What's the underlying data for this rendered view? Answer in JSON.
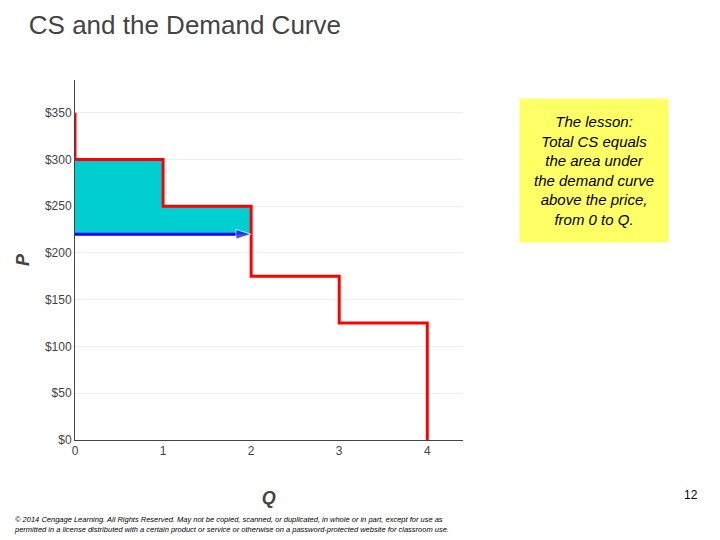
{
  "chart_data": {
    "type": "line",
    "title": "CS and the Demand Curve",
    "x_label": "Q",
    "y_label": "P",
    "series": [
      {
        "type": "area",
        "color": "#00CED1",
        "x": [
          0,
          1,
          1,
          2,
          2,
          0
        ],
        "values": [
          300,
          300,
          250,
          250,
          220,
          220
        ]
      },
      {
        "type": "line",
        "color": "#FF0000",
        "x": [
          0,
          0,
          1,
          1,
          2,
          2,
          3,
          3,
          4,
          4
        ],
        "values": [
          350,
          300,
          300,
          250,
          250,
          175,
          175,
          125,
          125,
          0
        ]
      },
      {
        "type": "line",
        "color": "#0000FF",
        "x": [
          0,
          2
        ],
        "values": [
          220,
          220
        ],
        "marker": "arrow"
      }
    ],
    "xlim": [
      0,
      4.4
    ],
    "xticks": [
      0,
      1,
      2,
      3,
      4
    ],
    "ylim": [
      0,
      385
    ],
    "yticks": [
      {
        "value": 0,
        "label": "$0"
      },
      {
        "value": 50,
        "label": "$50"
      },
      {
        "value": 100,
        "label": "$100"
      },
      {
        "value": 150,
        "label": "$150"
      },
      {
        "value": 200,
        "label": "$200"
      },
      {
        "value": 250,
        "label": "$250"
      },
      {
        "value": 300,
        "label": "$300"
      },
      {
        "value": 350,
        "label": "$350"
      }
    ],
    "grid": "y",
    "annotations": [
      {
        "text": "The lesson:\nTotal CS equals\nthe area under\nthe demand curve\nabove the price,\nfrom 0 to Q.",
        "color": "#FFFF66"
      },
      {
        "text": "© 2014 Cengage Learning. All Rights Reserved. May not be copied, scanned, or duplicated, in whole or in part, except for use as\npermitted in a license distributed with a certain product or service or otherwise on a password-protected website for classroom use."
      },
      {
        "text": "12"
      }
    ]
  }
}
